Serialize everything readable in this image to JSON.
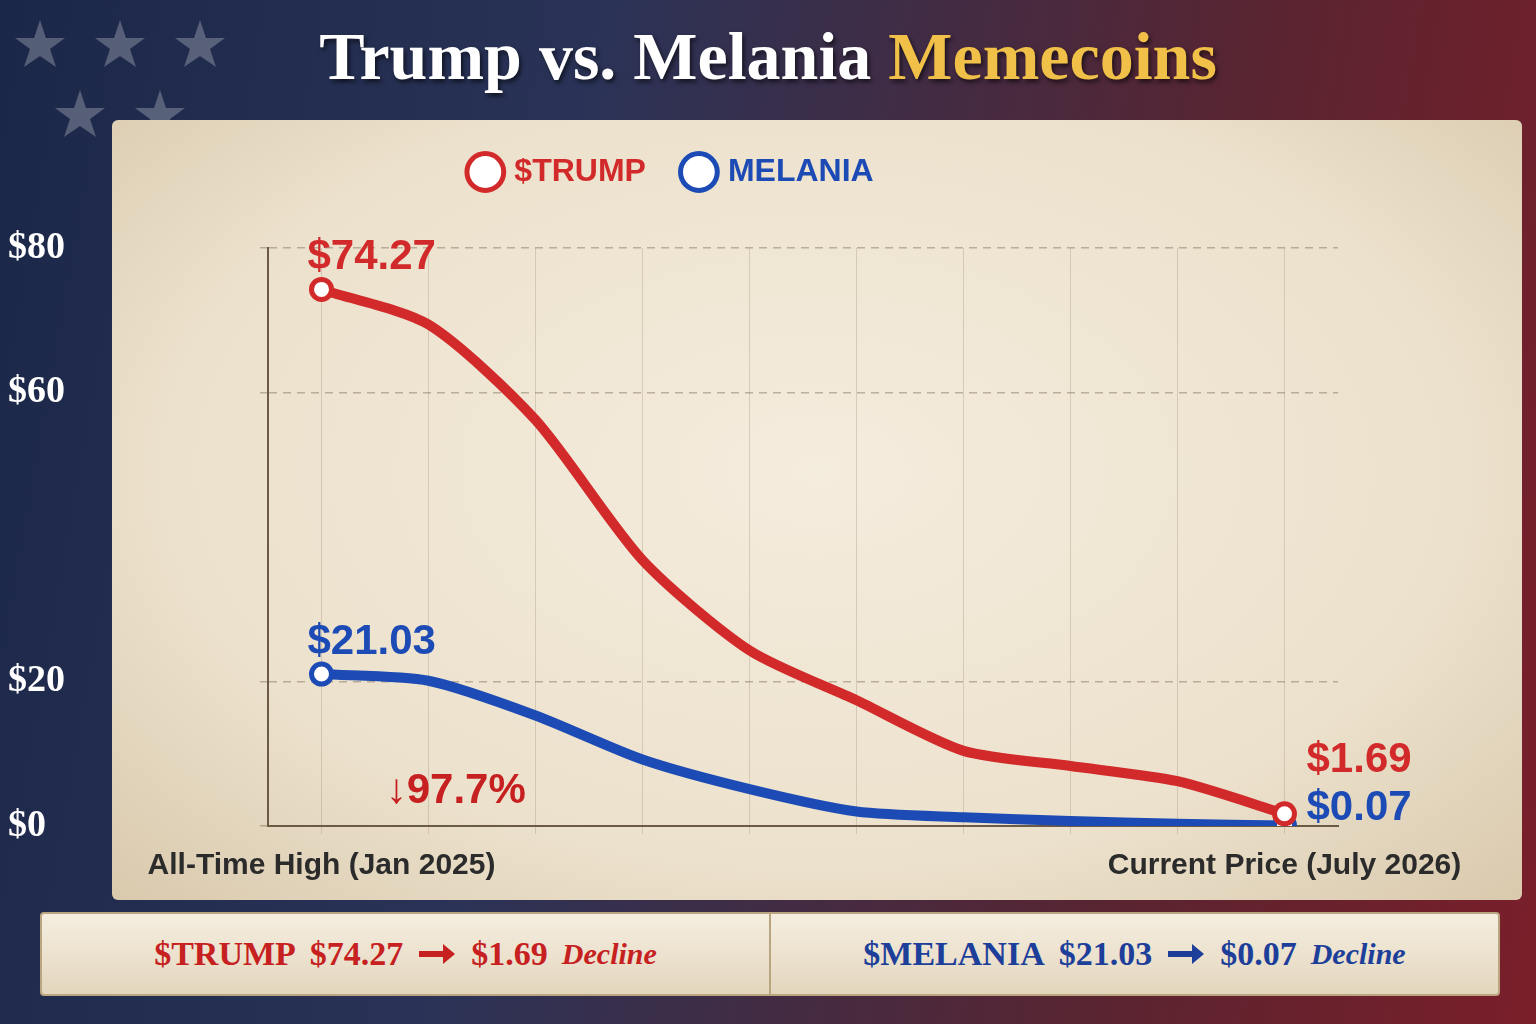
{
  "chart_data": {
    "type": "line",
    "title": "Trump vs. Melania Memecoins",
    "categories": [
      "All-Time High (Jan 2025)",
      null,
      null,
      null,
      null,
      null,
      null,
      null,
      null,
      "Current Price (July 2026)"
    ],
    "series": [
      {
        "name": "$TRUMP",
        "color": "#d22a2a",
        "values": [
          74.27,
          69.4,
          56.2,
          36.8,
          24.3,
          17.4,
          10.4,
          8.3,
          6.2,
          1.69
        ],
        "value_labels": [
          "$74.27",
          null,
          null,
          null,
          null,
          null,
          null,
          null,
          null,
          "$1.69"
        ]
      },
      {
        "name": "MELANIA",
        "color": "#1d4bb5",
        "values": [
          21.03,
          20.1,
          15.3,
          9.2,
          5.1,
          2.0,
          1.2,
          0.7,
          0.3,
          0.07
        ],
        "value_labels": [
          "$21.03",
          null,
          null,
          null,
          null,
          null,
          null,
          null,
          null,
          "$0.07"
        ]
      }
    ],
    "ylim": [
      0,
      80
    ],
    "yticks": [
      {
        "value": 0,
        "label": "$0"
      },
      {
        "value": 20,
        "label": "$20"
      },
      {
        "value": 60,
        "label": "$60"
      },
      {
        "value": 80,
        "label": "$80"
      }
    ],
    "grid": true,
    "legend": "top",
    "data_labels": true,
    "marker": "circle",
    "annotations": [
      {
        "text": "↓97.7%",
        "color": "#c62020"
      }
    ],
    "footer": [
      {
        "name": "$TRUMP",
        "from": "$74.27",
        "to": "$1.69",
        "note": "Decline",
        "color": "#c62020"
      },
      {
        "name": "$MELANIA",
        "from": "$21.03",
        "to": "$0.07",
        "note": "Decline",
        "color": "#1d3f9a"
      }
    ]
  }
}
